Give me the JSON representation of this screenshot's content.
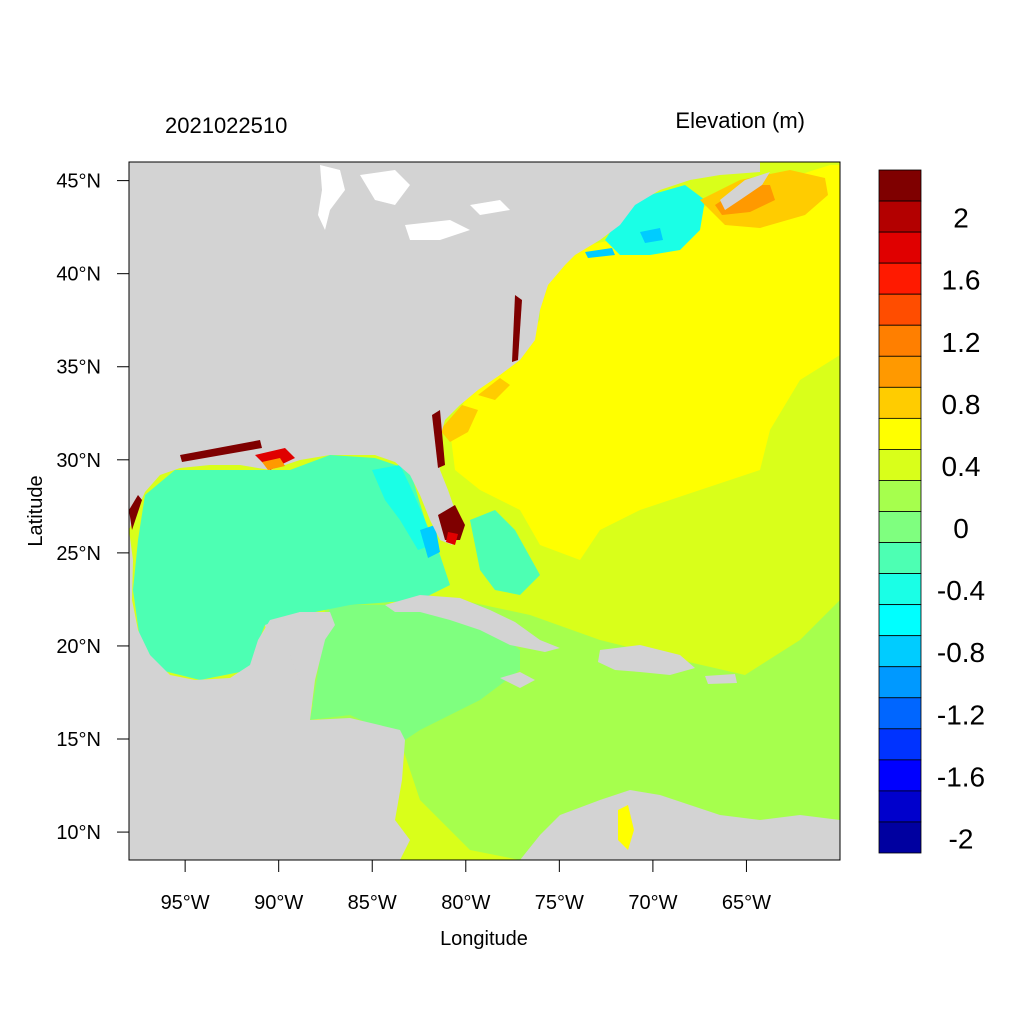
{
  "header": {
    "timestamp": "2021022510",
    "variable": "Elevation (m)"
  },
  "axes": {
    "xlabel": "Longitude",
    "ylabel": "Latitude",
    "lon_range": [
      -98,
      -60
    ],
    "lat_range": [
      8.5,
      46
    ],
    "x_ticks": [
      {
        "value": -95,
        "label": "95°W"
      },
      {
        "value": -90,
        "label": "90°W"
      },
      {
        "value": -85,
        "label": "85°W"
      },
      {
        "value": -80,
        "label": "80°W"
      },
      {
        "value": -75,
        "label": "75°W"
      },
      {
        "value": -70,
        "label": "70°W"
      },
      {
        "value": -65,
        "label": "65°W"
      }
    ],
    "y_ticks": [
      {
        "value": 45,
        "label": "45°N"
      },
      {
        "value": 40,
        "label": "40°N"
      },
      {
        "value": 35,
        "label": "35°N"
      },
      {
        "value": 30,
        "label": "30°N"
      },
      {
        "value": 25,
        "label": "25°N"
      },
      {
        "value": 20,
        "label": "20°N"
      },
      {
        "value": 15,
        "label": "15°N"
      },
      {
        "value": 10,
        "label": "10°N"
      }
    ]
  },
  "colorbar": {
    "levels_top_to_bottom": [
      "#7f0000",
      "#b30000",
      "#e00000",
      "#ff1a00",
      "#ff4d00",
      "#ff7f00",
      "#ff9900",
      "#ffcc00",
      "#ffff00",
      "#d9ff1a",
      "#a6ff4d",
      "#7fff7f",
      "#4dffb3",
      "#1affe6",
      "#00ffff",
      "#00ccff",
      "#0099ff",
      "#0066ff",
      "#0033ff",
      "#0000ff",
      "#0000cc",
      "#0000a0"
    ],
    "labels": [
      {
        "level_index": 1,
        "text": "2"
      },
      {
        "level_index": 3,
        "text": "1.6"
      },
      {
        "level_index": 5,
        "text": "1.2"
      },
      {
        "level_index": 7,
        "text": "0.8"
      },
      {
        "level_index": 9,
        "text": "0.4"
      },
      {
        "level_index": 11,
        "text": "0"
      },
      {
        "level_index": 13,
        "text": "-0.4"
      },
      {
        "level_index": 15,
        "text": "-0.8"
      },
      {
        "level_index": 17,
        "text": "-1.2"
      },
      {
        "level_index": 19,
        "text": "-1.6"
      },
      {
        "level_index": 21,
        "text": "-2"
      }
    ]
  },
  "colors": {
    "land": "#d3d3d3",
    "gulf": "#4dffb3",
    "caribbean": "#7fff7f",
    "caribbean_south": "#a6ff4d",
    "atlantic_south": "#d9ff1a",
    "atlantic_north": "#ffff00",
    "shelf_orange": "#ffcc00",
    "extreme_high": "#7f0000",
    "low_cyan": "#1affe6"
  }
}
